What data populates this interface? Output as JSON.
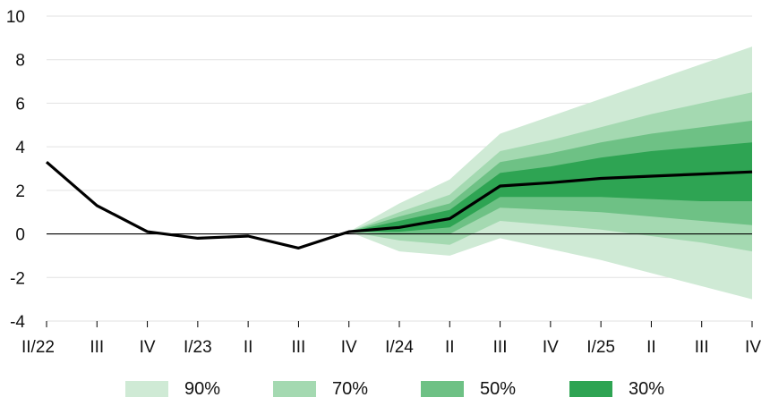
{
  "chart_data": {
    "type": "area",
    "title": "",
    "xlabel": "",
    "ylabel": "",
    "ylim": [
      -4,
      10
    ],
    "yticks": [
      -4,
      -2,
      0,
      2,
      4,
      6,
      8,
      10
    ],
    "grid": true,
    "legend_position": "bottom",
    "categories": [
      "II/22",
      "III",
      "IV",
      "I/23",
      "II",
      "III",
      "IV",
      "I/24",
      "II",
      "III",
      "IV",
      "I/25",
      "II",
      "III",
      "IV"
    ],
    "series": [
      {
        "values": [
          3.3,
          1.3,
          0.1,
          -0.2,
          -0.1,
          -0.65,
          0.1,
          0.3,
          0.7,
          2.2,
          2.35,
          2.55,
          2.65,
          2.75,
          2.85
        ]
      }
    ],
    "fan_start_index": 6,
    "fan_bands": [
      {
        "name": "90%",
        "color": "#cfead5",
        "upper": [
          0.1,
          1.4,
          2.5,
          4.6,
          5.4,
          6.2,
          7.0,
          7.8,
          8.6
        ],
        "lower": [
          0.1,
          -0.8,
          -1.0,
          -0.2,
          -0.7,
          -1.2,
          -1.8,
          -2.4,
          -3.0
        ]
      },
      {
        "name": "70%",
        "color": "#a4d9b1",
        "upper": [
          0.1,
          1.0,
          1.8,
          3.8,
          4.3,
          4.9,
          5.5,
          6.0,
          6.5
        ],
        "lower": [
          0.1,
          -0.3,
          -0.5,
          0.6,
          0.4,
          0.2,
          -0.1,
          -0.4,
          -0.8
        ]
      },
      {
        "name": "50%",
        "color": "#6ec185",
        "upper": [
          0.1,
          0.8,
          1.4,
          3.3,
          3.7,
          4.2,
          4.6,
          4.9,
          5.2
        ],
        "lower": [
          0.1,
          0.0,
          0.0,
          1.2,
          1.1,
          1.0,
          0.8,
          0.6,
          0.4
        ]
      },
      {
        "name": "30%",
        "color": "#2ea453",
        "upper": [
          0.1,
          0.6,
          1.1,
          2.8,
          3.1,
          3.5,
          3.8,
          4.0,
          4.2
        ],
        "lower": [
          0.1,
          0.1,
          0.3,
          1.7,
          1.7,
          1.7,
          1.6,
          1.5,
          1.5
        ]
      }
    ],
    "line_color": "#000000",
    "zero_line": true
  },
  "legend": {
    "items": [
      {
        "label": "90%",
        "color": "#cfead5"
      },
      {
        "label": "70%",
        "color": "#a4d9b1"
      },
      {
        "label": "50%",
        "color": "#6ec185"
      },
      {
        "label": "30%",
        "color": "#2ea453"
      }
    ]
  }
}
